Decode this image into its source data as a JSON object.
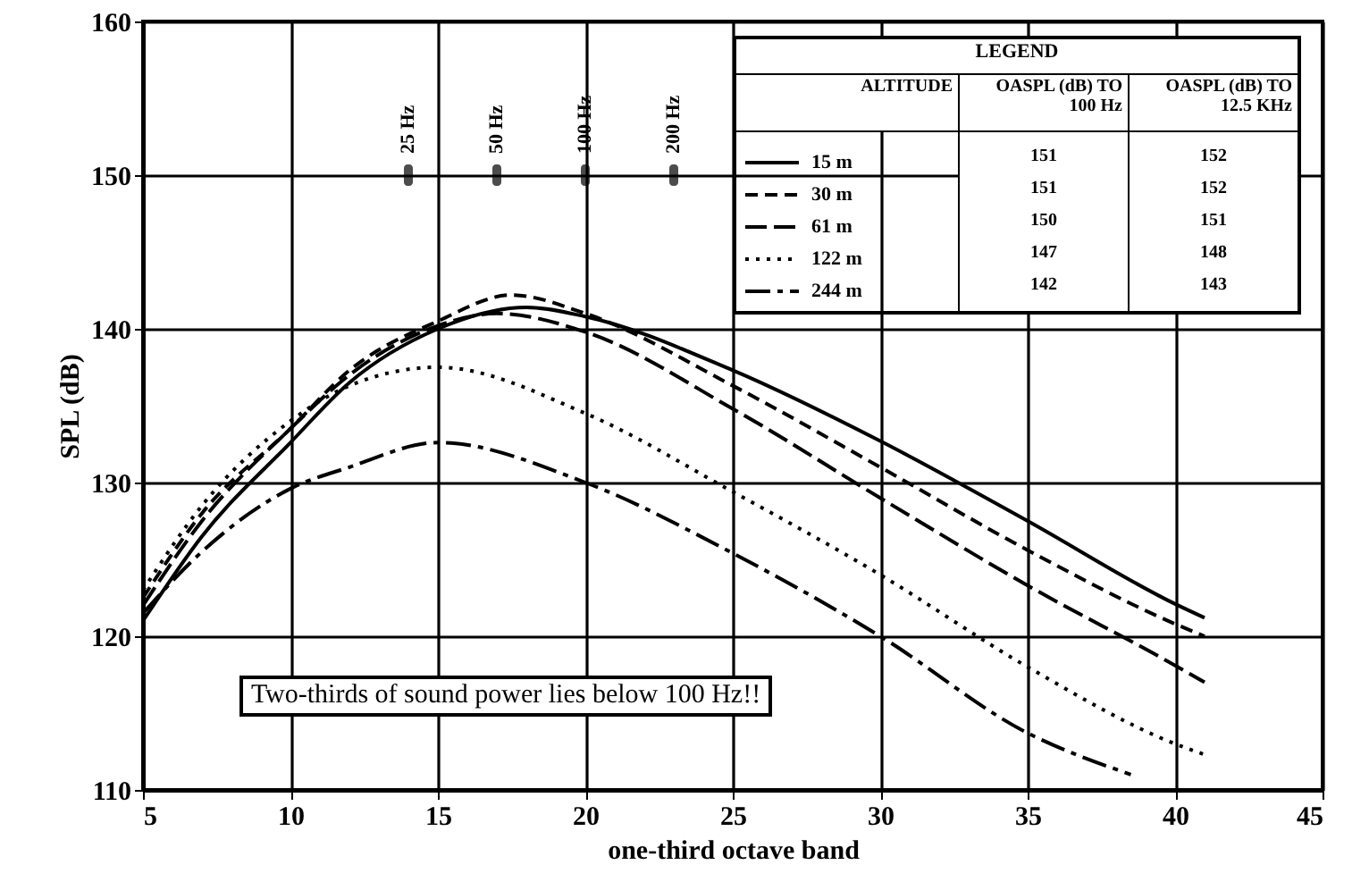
{
  "chart_data": {
    "type": "line",
    "xlabel": "one-third octave band",
    "ylabel": "SPL (dB)",
    "legend_title": "LEGEND",
    "legend": "top right",
    "grid": true,
    "xlim": [
      5,
      45
    ],
    "xticks": [
      5,
      10,
      15,
      20,
      25,
      30,
      35,
      40,
      45
    ],
    "ylim": [
      110,
      160
    ],
    "yticks": [
      110,
      120,
      130,
      140,
      150,
      160
    ],
    "series": [
      {
        "name": "15 m",
        "color": "#000000",
        "line_style": "solid",
        "x": [
          5,
          7,
          10,
          12,
          15,
          18,
          20,
          25,
          30,
          35,
          40,
          41
        ],
        "values": [
          121,
          126.5,
          132.6,
          136.5,
          140,
          141.4,
          140.8,
          137.3,
          132.7,
          127.5,
          122.1,
          121.2
        ]
      },
      {
        "name": "30 m",
        "color": "#000000",
        "line_style": "dashed",
        "x": [
          5,
          7,
          10,
          12,
          15,
          17.5,
          20,
          25,
          30,
          35,
          40,
          41
        ],
        "values": [
          122.5,
          128,
          133.5,
          137.3,
          140.5,
          142.2,
          141,
          136.3,
          131,
          125.6,
          120.8,
          120
        ]
      },
      {
        "name": "61 m",
        "color": "#000000",
        "line_style": "longdashed",
        "x": [
          5,
          7,
          10,
          12,
          15,
          17,
          20,
          25,
          30,
          35,
          40,
          41
        ],
        "values": [
          122,
          127.5,
          133.5,
          137,
          140.2,
          141,
          139.8,
          134.8,
          129,
          123.3,
          118.1,
          117
        ]
      },
      {
        "name": "122 m",
        "color": "#000000",
        "line_style": "dotted",
        "x": [
          5,
          7,
          10,
          12,
          15,
          20,
          25,
          30,
          35,
          40,
          41
        ],
        "values": [
          123,
          128.5,
          134,
          136.3,
          137.5,
          134.5,
          129.4,
          124,
          118,
          113,
          112.3
        ]
      },
      {
        "name": "244 m",
        "color": "#000000",
        "line_style": "dashdot",
        "x": [
          5,
          7,
          10,
          12,
          15,
          20,
          25,
          30,
          35,
          38.5
        ],
        "values": [
          121.5,
          125.5,
          129.6,
          131,
          132.6,
          130,
          125.4,
          120,
          113.7,
          111
        ]
      }
    ],
    "annotations": [
      "ALTITUDE",
      "OASPL (dB) TO 100 Hz",
      "OASPL (dB) TO 12.5 KHz",
      "151",
      "152",
      "151",
      "152",
      "150",
      "151",
      "147",
      "148",
      "142",
      "143",
      "Two-thirds of sound power lies below 100 Hz!!",
      {
        "text": "25 Hz",
        "x": 14,
        "y": 150
      },
      {
        "text": "50 Hz",
        "x": 17,
        "y": 150
      },
      {
        "text": "100 Hz",
        "x": 20,
        "y": 150
      },
      {
        "text": "200 Hz",
        "x": 23,
        "y": 150
      }
    ]
  }
}
